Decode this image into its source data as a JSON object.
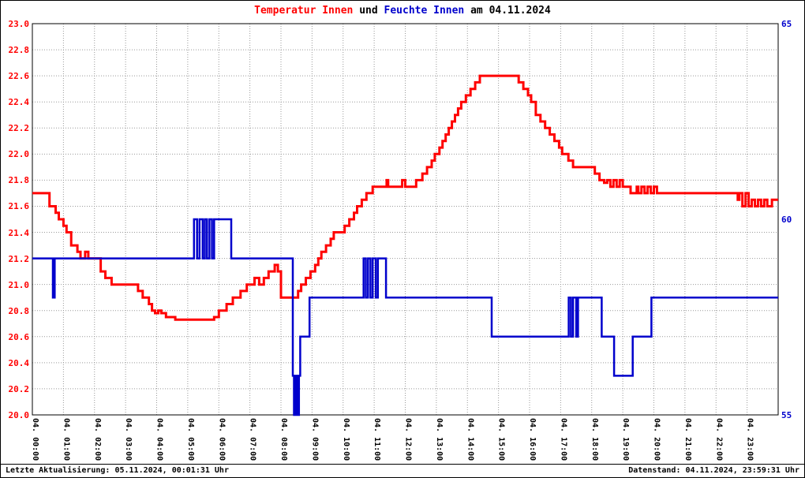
{
  "title": {
    "part1": "Temperatur Innen",
    "part2": " und ",
    "part3": "Feuchte Innen",
    "part4": " am 04.11.2024"
  },
  "footer": {
    "left": "Letzte Aktualisierung: 05.11.2024, 00:01:31 Uhr",
    "right": "Datenstand: 04.11.2024, 23:59:31 Uhr"
  },
  "chart_data": {
    "type": "line",
    "title": "Temperatur Innen und Feuchte Innen am 04.11.2024",
    "grid": true,
    "legend_position": "none",
    "xlim": [
      0,
      24
    ],
    "x_ticks": [
      "04. 00:00",
      "04. 01:00",
      "04. 02:00",
      "04. 03:00",
      "04. 04:00",
      "04. 05:00",
      "04. 06:00",
      "04. 07:00",
      "04. 08:00",
      "04. 09:00",
      "04. 10:00",
      "04. 11:00",
      "04. 12:00",
      "04. 13:00",
      "04. 14:00",
      "04. 15:00",
      "04. 16:00",
      "04. 17:00",
      "04. 18:00",
      "04. 19:00",
      "04. 20:00",
      "04. 21:00",
      "04. 22:00",
      "04. 23:00"
    ],
    "left_axis": {
      "min": 20.0,
      "max": 23.0,
      "step": 0.2,
      "color": "#ff0000",
      "ticks": [
        "23.0",
        "22.8",
        "22.6",
        "22.4",
        "22.2",
        "22.0",
        "21.8",
        "21.6",
        "21.4",
        "21.2",
        "21.0",
        "20.8",
        "20.6",
        "20.4",
        "20.2",
        "20.0"
      ]
    },
    "right_axis": {
      "min": 55,
      "max": 65,
      "color": "#0000cc",
      "ticks": [
        {
          "label": "65",
          "value": 65
        },
        {
          "label": "60",
          "value": 60
        },
        {
          "label": "55",
          "value": 55
        }
      ]
    },
    "series": [
      {
        "name": "Temperatur Innen",
        "axis": "left",
        "color": "#ff0000",
        "width": 3,
        "step": true,
        "points": [
          [
            0,
            21.7
          ],
          [
            0.55,
            21.6
          ],
          [
            0.75,
            21.55
          ],
          [
            0.85,
            21.5
          ],
          [
            1.0,
            21.45
          ],
          [
            1.1,
            21.4
          ],
          [
            1.25,
            21.3
          ],
          [
            1.45,
            21.25
          ],
          [
            1.55,
            21.2
          ],
          [
            1.7,
            21.25
          ],
          [
            1.8,
            21.2
          ],
          [
            2.2,
            21.1
          ],
          [
            2.35,
            21.05
          ],
          [
            2.55,
            21.0
          ],
          [
            3.3,
            21.0
          ],
          [
            3.4,
            20.95
          ],
          [
            3.55,
            20.9
          ],
          [
            3.75,
            20.85
          ],
          [
            3.85,
            20.8
          ],
          [
            3.95,
            20.78
          ],
          [
            4.05,
            20.8
          ],
          [
            4.15,
            20.78
          ],
          [
            4.3,
            20.75
          ],
          [
            4.6,
            20.73
          ],
          [
            5.7,
            20.73
          ],
          [
            5.85,
            20.75
          ],
          [
            6.0,
            20.8
          ],
          [
            6.25,
            20.85
          ],
          [
            6.45,
            20.9
          ],
          [
            6.7,
            20.95
          ],
          [
            6.9,
            21.0
          ],
          [
            7.15,
            21.05
          ],
          [
            7.3,
            21.0
          ],
          [
            7.45,
            21.05
          ],
          [
            7.6,
            21.1
          ],
          [
            7.8,
            21.15
          ],
          [
            7.9,
            21.1
          ],
          [
            8.0,
            20.9
          ],
          [
            8.45,
            20.9
          ],
          [
            8.55,
            20.95
          ],
          [
            8.65,
            21.0
          ],
          [
            8.8,
            21.05
          ],
          [
            8.95,
            21.1
          ],
          [
            9.1,
            21.15
          ],
          [
            9.2,
            21.2
          ],
          [
            9.3,
            21.25
          ],
          [
            9.45,
            21.3
          ],
          [
            9.6,
            21.35
          ],
          [
            9.7,
            21.4
          ],
          [
            10.05,
            21.45
          ],
          [
            10.2,
            21.5
          ],
          [
            10.35,
            21.55
          ],
          [
            10.45,
            21.6
          ],
          [
            10.6,
            21.65
          ],
          [
            10.75,
            21.7
          ],
          [
            10.95,
            21.75
          ],
          [
            11.4,
            21.8
          ],
          [
            11.45,
            21.75
          ],
          [
            11.9,
            21.8
          ],
          [
            12.0,
            21.75
          ],
          [
            12.35,
            21.8
          ],
          [
            12.55,
            21.85
          ],
          [
            12.7,
            21.9
          ],
          [
            12.85,
            21.95
          ],
          [
            12.95,
            22.0
          ],
          [
            13.1,
            22.05
          ],
          [
            13.2,
            22.1
          ],
          [
            13.3,
            22.15
          ],
          [
            13.4,
            22.2
          ],
          [
            13.5,
            22.25
          ],
          [
            13.6,
            22.3
          ],
          [
            13.7,
            22.35
          ],
          [
            13.8,
            22.4
          ],
          [
            13.95,
            22.45
          ],
          [
            14.1,
            22.5
          ],
          [
            14.25,
            22.55
          ],
          [
            14.4,
            22.6
          ],
          [
            15.5,
            22.6
          ],
          [
            15.65,
            22.55
          ],
          [
            15.8,
            22.5
          ],
          [
            15.95,
            22.45
          ],
          [
            16.05,
            22.4
          ],
          [
            16.2,
            22.3
          ],
          [
            16.35,
            22.25
          ],
          [
            16.5,
            22.2
          ],
          [
            16.65,
            22.15
          ],
          [
            16.8,
            22.1
          ],
          [
            16.95,
            22.05
          ],
          [
            17.05,
            22.0
          ],
          [
            17.25,
            21.95
          ],
          [
            17.4,
            21.9
          ],
          [
            18.0,
            21.9
          ],
          [
            18.1,
            21.85
          ],
          [
            18.25,
            21.8
          ],
          [
            18.4,
            21.78
          ],
          [
            18.5,
            21.8
          ],
          [
            18.6,
            21.75
          ],
          [
            18.7,
            21.8
          ],
          [
            18.8,
            21.75
          ],
          [
            18.9,
            21.8
          ],
          [
            19.0,
            21.75
          ],
          [
            19.25,
            21.7
          ],
          [
            19.45,
            21.75
          ],
          [
            19.5,
            21.7
          ],
          [
            19.6,
            21.75
          ],
          [
            19.7,
            21.7
          ],
          [
            19.8,
            21.75
          ],
          [
            19.9,
            21.7
          ],
          [
            20.0,
            21.75
          ],
          [
            20.1,
            21.7
          ],
          [
            22.6,
            21.7
          ],
          [
            22.7,
            21.65
          ],
          [
            22.75,
            21.7
          ],
          [
            22.85,
            21.6
          ],
          [
            22.95,
            21.7
          ],
          [
            23.05,
            21.6
          ],
          [
            23.15,
            21.65
          ],
          [
            23.25,
            21.6
          ],
          [
            23.35,
            21.65
          ],
          [
            23.45,
            21.6
          ],
          [
            23.55,
            21.65
          ],
          [
            23.65,
            21.6
          ],
          [
            23.8,
            21.65
          ],
          [
            24,
            21.65
          ]
        ]
      },
      {
        "name": "Feuchte Innen",
        "axis": "right",
        "color": "#0000cc",
        "width": 2.5,
        "step": true,
        "points": [
          [
            0,
            59
          ],
          [
            0.62,
            59
          ],
          [
            0.66,
            58
          ],
          [
            0.72,
            59
          ],
          [
            5.15,
            59
          ],
          [
            5.2,
            60
          ],
          [
            5.3,
            59
          ],
          [
            5.38,
            60
          ],
          [
            5.48,
            59
          ],
          [
            5.55,
            60
          ],
          [
            5.62,
            59
          ],
          [
            5.7,
            60
          ],
          [
            5.78,
            59
          ],
          [
            5.85,
            60
          ],
          [
            6.35,
            60
          ],
          [
            6.4,
            59
          ],
          [
            8.3,
            59
          ],
          [
            8.38,
            56
          ],
          [
            8.42,
            55
          ],
          [
            8.48,
            56
          ],
          [
            8.52,
            55
          ],
          [
            8.58,
            56
          ],
          [
            8.62,
            57
          ],
          [
            8.85,
            57
          ],
          [
            8.92,
            58
          ],
          [
            10.6,
            58
          ],
          [
            10.66,
            59
          ],
          [
            10.73,
            58
          ],
          [
            10.8,
            59
          ],
          [
            10.88,
            58
          ],
          [
            10.95,
            59
          ],
          [
            11.05,
            58
          ],
          [
            11.12,
            59
          ],
          [
            11.3,
            59
          ],
          [
            11.38,
            58
          ],
          [
            14.7,
            58
          ],
          [
            14.78,
            57
          ],
          [
            17.2,
            57
          ],
          [
            17.26,
            58
          ],
          [
            17.33,
            57
          ],
          [
            17.4,
            58
          ],
          [
            17.5,
            57
          ],
          [
            17.56,
            58
          ],
          [
            18.25,
            58
          ],
          [
            18.32,
            57
          ],
          [
            18.65,
            57
          ],
          [
            18.72,
            56
          ],
          [
            19.25,
            56
          ],
          [
            19.32,
            57
          ],
          [
            19.85,
            57
          ],
          [
            19.92,
            58
          ],
          [
            24,
            58
          ]
        ]
      }
    ]
  }
}
